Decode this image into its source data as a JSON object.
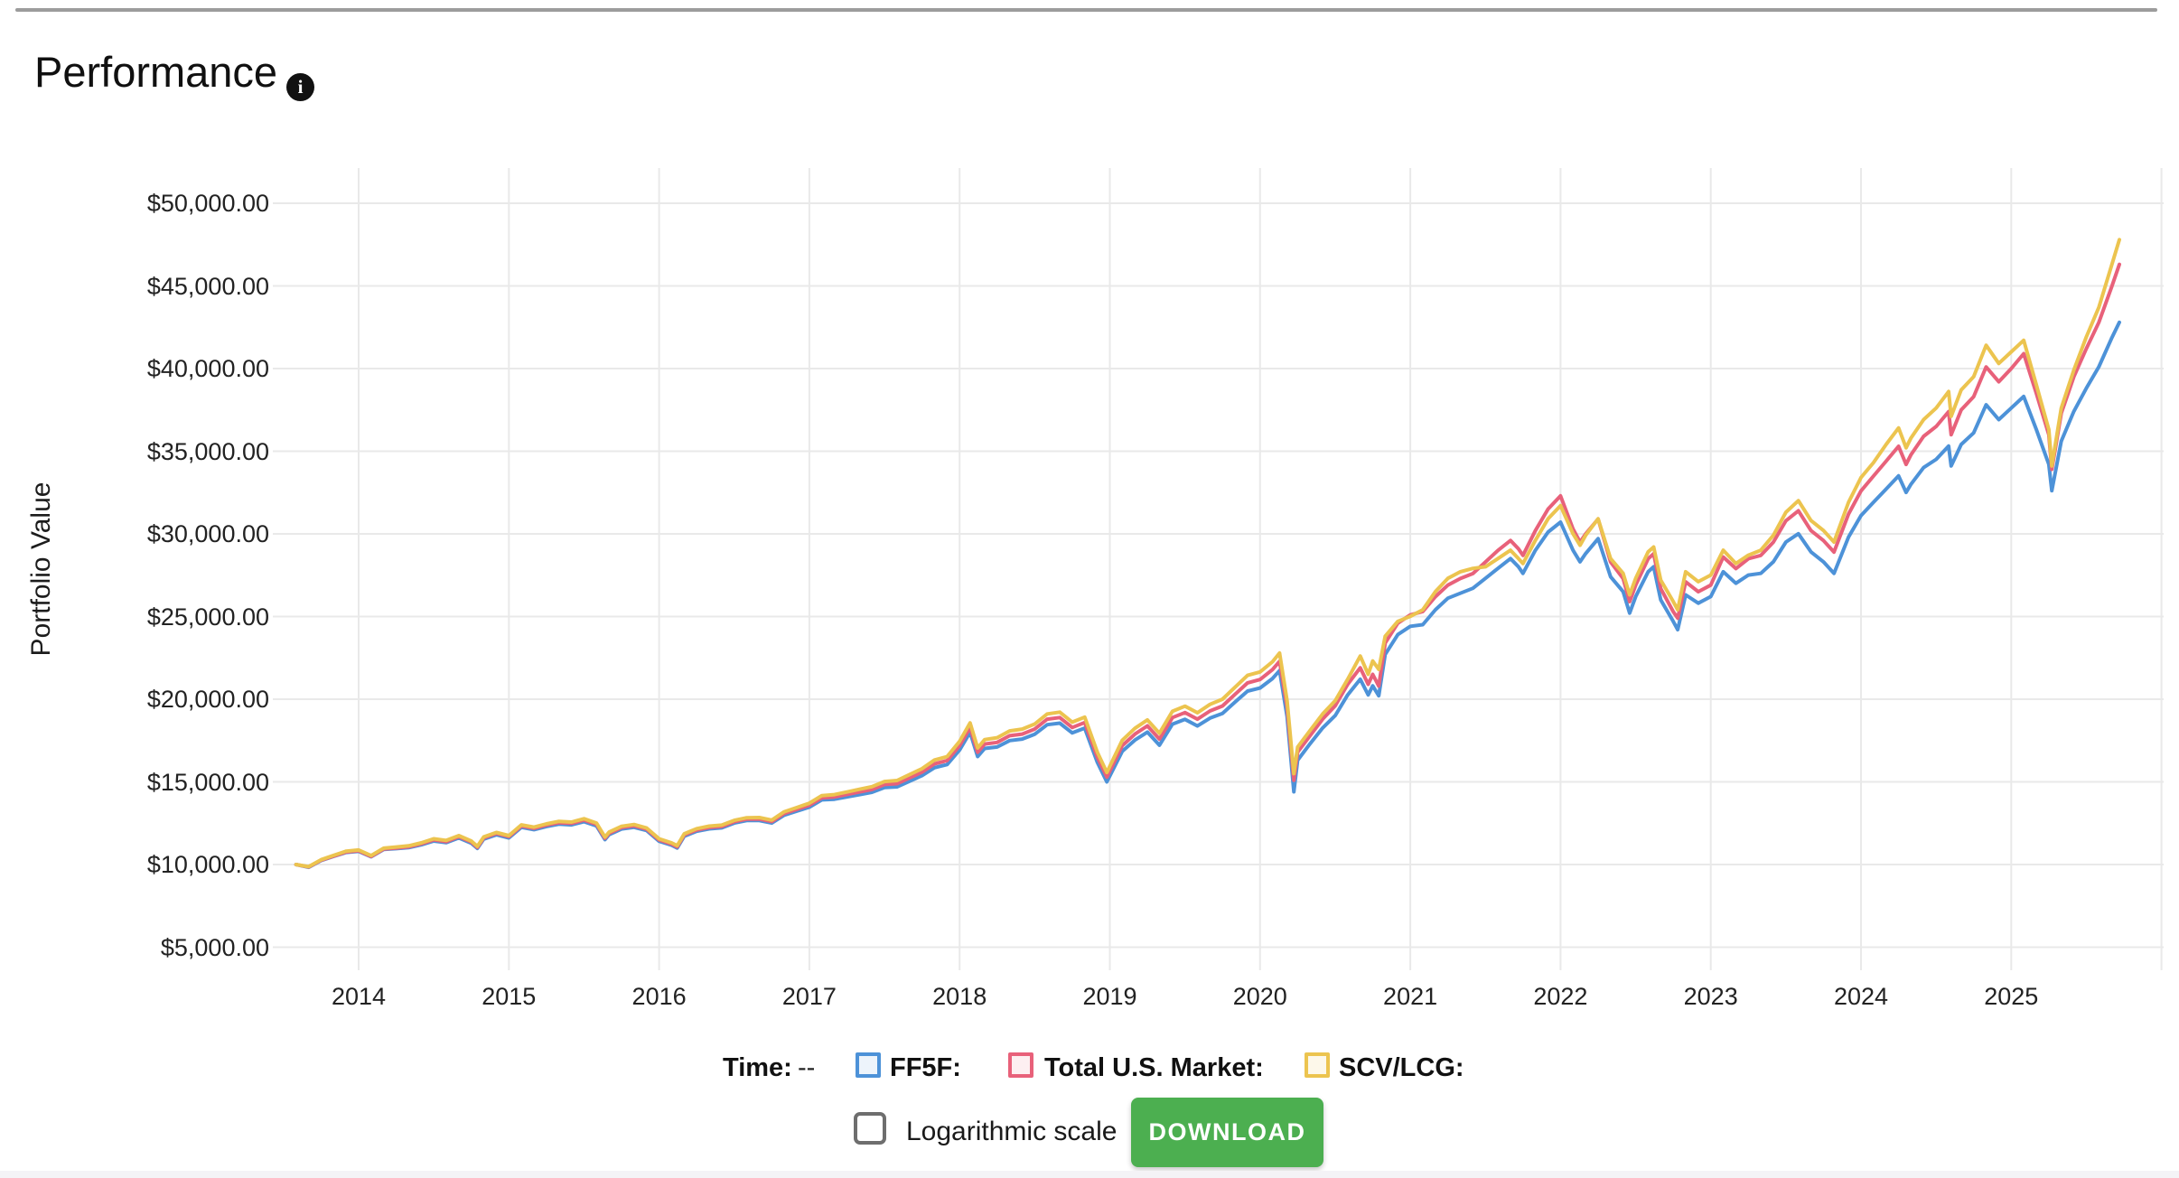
{
  "page": {
    "title": "Performance",
    "info_icon_glyph": "i"
  },
  "legend": {
    "time_label": "Time:",
    "time_value": "--",
    "items": [
      {
        "label": "FF5F:",
        "color": "#4d92d8",
        "fill": "rgba(77,146,216,0.10)"
      },
      {
        "label": "Total U.S. Market:",
        "color": "#e8617a",
        "fill": "rgba(232,97,122,0.10)"
      },
      {
        "label": "SCV/LCG:",
        "color": "#ecc44f",
        "fill": "rgba(236,196,79,0.12)"
      }
    ]
  },
  "controls": {
    "log_scale_label": "Logarithmic scale",
    "log_scale_checked": false,
    "download_label": "DOWNLOAD",
    "download_color": "#4caf50"
  },
  "chart_data": {
    "type": "line",
    "title": "Performance",
    "xlabel": "",
    "ylabel": "Portfolio Value",
    "grid": true,
    "legend_position": "bottom",
    "xlim": [
      2013.52,
      2026.02
    ],
    "ylim": [
      3550,
      52050
    ],
    "x_tick_years": [
      2014,
      2015,
      2016,
      2017,
      2018,
      2019,
      2020,
      2021,
      2022,
      2023,
      2024,
      2025
    ],
    "x_grid_years": [
      2014,
      2015,
      2016,
      2017,
      2018,
      2019,
      2020,
      2021,
      2022,
      2023,
      2024,
      2025,
      2026
    ],
    "y_ticks": [
      {
        "value": 5000,
        "label": "$5,000.00"
      },
      {
        "value": 10000,
        "label": "$10,000.00"
      },
      {
        "value": 15000,
        "label": "$15,000.00"
      },
      {
        "value": 20000,
        "label": "$20,000.00"
      },
      {
        "value": 25000,
        "label": "$25,000.00"
      },
      {
        "value": 30000,
        "label": "$30,000.00"
      },
      {
        "value": 35000,
        "label": "$35,000.00"
      },
      {
        "value": 40000,
        "label": "$40,000.00"
      },
      {
        "value": 45000,
        "label": "$45,000.00"
      },
      {
        "value": 50000,
        "label": "$50,000.00"
      }
    ],
    "series": [
      {
        "name": "FF5F",
        "color": "#4d92d8"
      },
      {
        "name": "Total U.S. Market",
        "color": "#e8617a"
      },
      {
        "name": "SCV/LCG",
        "color": "#ecc44f"
      }
    ],
    "columns": [
      "year_fraction",
      "FF5F",
      "Total U.S. Market",
      "SCV/LCG"
    ],
    "rows": [
      [
        2013.583,
        10000,
        10000,
        10000
      ],
      [
        2013.667,
        9830,
        9850,
        9870
      ],
      [
        2013.75,
        10240,
        10260,
        10290
      ],
      [
        2013.833,
        10490,
        10510,
        10550
      ],
      [
        2013.917,
        10730,
        10760,
        10810
      ],
      [
        2014.0,
        10800,
        10830,
        10880
      ],
      [
        2014.083,
        10470,
        10490,
        10540
      ],
      [
        2014.167,
        10910,
        10940,
        10990
      ],
      [
        2014.25,
        10960,
        11000,
        11060
      ],
      [
        2014.333,
        11020,
        11070,
        11130
      ],
      [
        2014.417,
        11190,
        11250,
        11310
      ],
      [
        2014.5,
        11420,
        11490,
        11560
      ],
      [
        2014.583,
        11320,
        11390,
        11460
      ],
      [
        2014.667,
        11610,
        11690,
        11750
      ],
      [
        2014.75,
        11290,
        11360,
        11420
      ],
      [
        2014.79,
        10980,
        11040,
        11100
      ],
      [
        2014.833,
        11540,
        11610,
        11670
      ],
      [
        2014.917,
        11800,
        11880,
        11940
      ],
      [
        2015.0,
        11610,
        11690,
        11750
      ],
      [
        2015.083,
        12250,
        12330,
        12400
      ],
      [
        2015.167,
        12110,
        12190,
        12260
      ],
      [
        2015.25,
        12300,
        12390,
        12460
      ],
      [
        2015.333,
        12440,
        12530,
        12610
      ],
      [
        2015.417,
        12400,
        12490,
        12570
      ],
      [
        2015.5,
        12590,
        12690,
        12770
      ],
      [
        2015.583,
        12340,
        12430,
        12510
      ],
      [
        2015.64,
        11510,
        11590,
        11660
      ],
      [
        2015.667,
        11810,
        11890,
        11960
      ],
      [
        2015.75,
        12150,
        12240,
        12310
      ],
      [
        2015.833,
        12250,
        12340,
        12420
      ],
      [
        2015.917,
        12060,
        12140,
        12210
      ],
      [
        2016.0,
        11410,
        11490,
        11560
      ],
      [
        2016.083,
        11170,
        11240,
        11310
      ],
      [
        2016.12,
        11000,
        11070,
        11140
      ],
      [
        2016.167,
        11710,
        11790,
        11860
      ],
      [
        2016.25,
        12010,
        12090,
        12170
      ],
      [
        2016.333,
        12160,
        12240,
        12320
      ],
      [
        2016.417,
        12220,
        12300,
        12380
      ],
      [
        2016.5,
        12510,
        12590,
        12670
      ],
      [
        2016.583,
        12660,
        12750,
        12830
      ],
      [
        2016.667,
        12660,
        12750,
        12840
      ],
      [
        2016.75,
        12510,
        12600,
        12690
      ],
      [
        2016.833,
        12990,
        13090,
        13190
      ],
      [
        2016.917,
        13230,
        13340,
        13450
      ],
      [
        2017.0,
        13470,
        13590,
        13710
      ],
      [
        2017.083,
        13910,
        14040,
        14170
      ],
      [
        2017.167,
        13950,
        14090,
        14230
      ],
      [
        2017.25,
        14090,
        14240,
        14390
      ],
      [
        2017.333,
        14230,
        14390,
        14550
      ],
      [
        2017.417,
        14370,
        14540,
        14710
      ],
      [
        2017.5,
        14660,
        14840,
        15020
      ],
      [
        2017.583,
        14700,
        14890,
        15080
      ],
      [
        2017.667,
        15040,
        15240,
        15440
      ],
      [
        2017.75,
        15380,
        15590,
        15800
      ],
      [
        2017.833,
        15860,
        16090,
        16320
      ],
      [
        2017.917,
        16050,
        16290,
        16530
      ],
      [
        2018.0,
        16930,
        17190,
        17450
      ],
      [
        2018.07,
        18000,
        18290,
        18570
      ],
      [
        2018.12,
        16530,
        16790,
        17050
      ],
      [
        2018.167,
        17020,
        17290,
        17560
      ],
      [
        2018.25,
        17110,
        17390,
        17670
      ],
      [
        2018.333,
        17500,
        17790,
        18080
      ],
      [
        2018.417,
        17590,
        17890,
        18190
      ],
      [
        2018.5,
        17880,
        18190,
        18500
      ],
      [
        2018.583,
        18460,
        18790,
        19110
      ],
      [
        2018.667,
        18550,
        18890,
        19220
      ],
      [
        2018.75,
        17960,
        18290,
        18610
      ],
      [
        2018.833,
        18250,
        18590,
        18920
      ],
      [
        2018.917,
        16180,
        16490,
        16790
      ],
      [
        2018.98,
        15000,
        15290,
        15570
      ],
      [
        2019.083,
        16850,
        17190,
        17520
      ],
      [
        2019.167,
        17530,
        17890,
        18240
      ],
      [
        2019.25,
        18010,
        18390,
        18750
      ],
      [
        2019.33,
        17220,
        17590,
        17940
      ],
      [
        2019.417,
        18490,
        18890,
        19270
      ],
      [
        2019.5,
        18780,
        19190,
        19580
      ],
      [
        2019.583,
        18380,
        18790,
        19180
      ],
      [
        2019.667,
        18860,
        19290,
        19690
      ],
      [
        2019.75,
        19140,
        19590,
        20000
      ],
      [
        2019.833,
        19820,
        20290,
        20720
      ],
      [
        2019.917,
        20490,
        20990,
        21440
      ],
      [
        2020.0,
        20680,
        21190,
        21650
      ],
      [
        2020.083,
        21250,
        21790,
        22270
      ],
      [
        2020.13,
        21730,
        22290,
        22790
      ],
      [
        2020.18,
        18960,
        19500,
        19910
      ],
      [
        2020.225,
        14400,
        15100,
        15500
      ],
      [
        2020.25,
        16310,
        16800,
        17110
      ],
      [
        2020.333,
        17310,
        17800,
        18110
      ],
      [
        2020.417,
        18260,
        18800,
        19110
      ],
      [
        2020.5,
        19010,
        19600,
        19910
      ],
      [
        2020.583,
        20260,
        20900,
        21210
      ],
      [
        2020.667,
        21210,
        21900,
        22610
      ],
      [
        2020.72,
        20260,
        20900,
        21510
      ],
      [
        2020.75,
        20810,
        21500,
        22310
      ],
      [
        2020.79,
        20210,
        20800,
        21810
      ],
      [
        2020.833,
        22710,
        23400,
        23810
      ],
      [
        2020.917,
        23910,
        24600,
        24710
      ],
      [
        2021.0,
        24410,
        25100,
        25010
      ],
      [
        2021.083,
        24510,
        25300,
        25410
      ],
      [
        2021.167,
        25410,
        26200,
        26510
      ],
      [
        2021.25,
        26110,
        26900,
        27310
      ],
      [
        2021.333,
        26410,
        27300,
        27710
      ],
      [
        2021.417,
        26710,
        27600,
        27910
      ],
      [
        2021.5,
        27310,
        28300,
        28010
      ],
      [
        2021.583,
        27910,
        29000,
        28510
      ],
      [
        2021.667,
        28510,
        29600,
        29010
      ],
      [
        2021.72,
        28010,
        29100,
        28510
      ],
      [
        2021.75,
        27610,
        28700,
        28210
      ],
      [
        2021.833,
        29010,
        30200,
        29610
      ],
      [
        2021.917,
        30110,
        31500,
        30910
      ],
      [
        2022.0,
        30710,
        32300,
        31710
      ],
      [
        2022.083,
        29010,
        30300,
        30010
      ],
      [
        2022.13,
        28310,
        29500,
        29310
      ],
      [
        2022.167,
        28810,
        30000,
        29910
      ],
      [
        2022.25,
        29710,
        30900,
        30910
      ],
      [
        2022.333,
        27410,
        28300,
        28510
      ],
      [
        2022.417,
        26510,
        27300,
        27610
      ],
      [
        2022.46,
        25210,
        25900,
        26310
      ],
      [
        2022.5,
        26210,
        26900,
        27310
      ],
      [
        2022.583,
        27710,
        28500,
        28910
      ],
      [
        2022.62,
        28010,
        28800,
        29210
      ],
      [
        2022.667,
        26010,
        26700,
        27210
      ],
      [
        2022.75,
        24710,
        25300,
        25910
      ],
      [
        2022.78,
        24210,
        24900,
        25410
      ],
      [
        2022.833,
        26310,
        27100,
        27710
      ],
      [
        2022.917,
        25810,
        26500,
        27110
      ],
      [
        2023.0,
        26210,
        26900,
        27510
      ],
      [
        2023.083,
        27710,
        28600,
        29010
      ],
      [
        2023.167,
        27010,
        27900,
        28210
      ],
      [
        2023.25,
        27510,
        28500,
        28710
      ],
      [
        2023.333,
        27610,
        28700,
        29010
      ],
      [
        2023.417,
        28310,
        29500,
        29910
      ],
      [
        2023.5,
        29510,
        30800,
        31310
      ],
      [
        2023.583,
        30010,
        31400,
        32010
      ],
      [
        2023.667,
        28910,
        30200,
        30810
      ],
      [
        2023.75,
        28310,
        29600,
        30210
      ],
      [
        2023.82,
        27610,
        28900,
        29510
      ],
      [
        2023.917,
        29810,
        31200,
        31910
      ],
      [
        2024.0,
        31110,
        32600,
        33410
      ],
      [
        2024.083,
        31910,
        33500,
        34310
      ],
      [
        2024.167,
        32710,
        34400,
        35410
      ],
      [
        2024.25,
        33510,
        35300,
        36410
      ],
      [
        2024.3,
        32510,
        34200,
        35210
      ],
      [
        2024.333,
        33010,
        34800,
        35810
      ],
      [
        2024.417,
        34010,
        35900,
        36910
      ],
      [
        2024.5,
        34510,
        36500,
        37610
      ],
      [
        2024.583,
        35310,
        37400,
        38610
      ],
      [
        2024.6,
        34110,
        36000,
        37110
      ],
      [
        2024.667,
        35410,
        37500,
        38710
      ],
      [
        2024.75,
        36110,
        38300,
        39510
      ],
      [
        2024.833,
        37810,
        40100,
        41410
      ],
      [
        2024.917,
        36910,
        39200,
        40310
      ],
      [
        2025.0,
        37610,
        40000,
        41010
      ],
      [
        2025.083,
        38310,
        40900,
        41710
      ],
      [
        2025.167,
        36310,
        38500,
        39010
      ],
      [
        2025.25,
        34210,
        36000,
        36310
      ],
      [
        2025.27,
        32610,
        33900,
        34110
      ],
      [
        2025.333,
        35610,
        37300,
        37610
      ],
      [
        2025.417,
        37410,
        39500,
        39910
      ],
      [
        2025.5,
        38810,
        41200,
        41910
      ],
      [
        2025.583,
        40110,
        42800,
        43710
      ],
      [
        2025.667,
        41810,
        44900,
        46210
      ],
      [
        2025.72,
        42800,
        46300,
        47800
      ]
    ]
  }
}
